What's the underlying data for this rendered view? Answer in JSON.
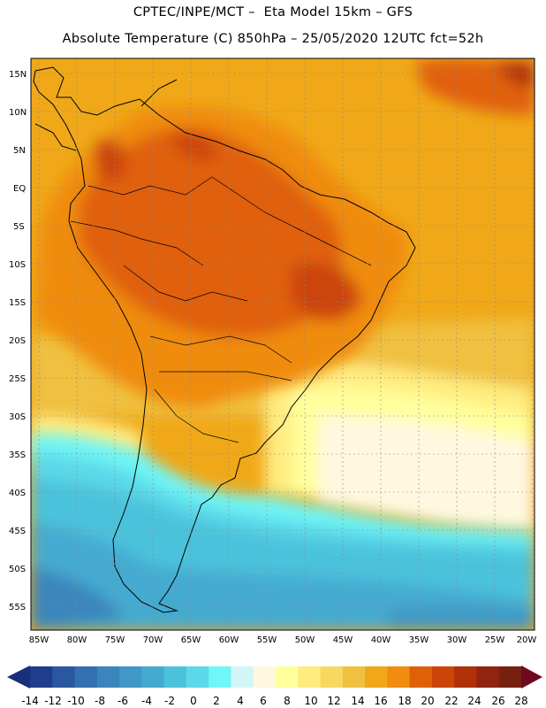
{
  "header": {
    "title_line1": "CPTEC/INPE/MCT –  Eta Model 15km – GFS",
    "title_line2": "Absolute Temperature (C) 850hPa – 25/05/2020 12UTC fct=52h"
  },
  "map": {
    "lat_labels": [
      "15N",
      "10N",
      "5N",
      "EQ",
      "5S",
      "10S",
      "15S",
      "20S",
      "25S",
      "30S",
      "35S",
      "40S",
      "45S",
      "50S",
      "55S"
    ],
    "lon_labels": [
      "85W",
      "80W",
      "75W",
      "70W",
      "65W",
      "60W",
      "55W",
      "50W",
      "45W",
      "40W",
      "35W",
      "30W",
      "25W",
      "20W"
    ]
  },
  "colorbar": {
    "labels": [
      "-14",
      "-12",
      "-10",
      "-8",
      "-6",
      "-4",
      "-2",
      "0",
      "2",
      "4",
      "6",
      "8",
      "10",
      "12",
      "14",
      "16",
      "18",
      "20",
      "22",
      "24",
      "26",
      "28"
    ],
    "colors": [
      "#1f3d8a",
      "#2a58a0",
      "#3270b0",
      "#3a86bc",
      "#3f98c6",
      "#44aad0",
      "#4cc2dc",
      "#5cd8e8",
      "#6ff6f6",
      "#d2f6f6",
      "#fff8e0",
      "#ffff9c",
      "#ffec80",
      "#f8d860",
      "#f0c040",
      "#f0a818",
      "#f08c10",
      "#e06008",
      "#cc4408",
      "#b03008",
      "#902410",
      "#782010"
    ],
    "low_arrow_color": "#1a2f7a",
    "high_arrow_color": "#6e0a20"
  }
}
